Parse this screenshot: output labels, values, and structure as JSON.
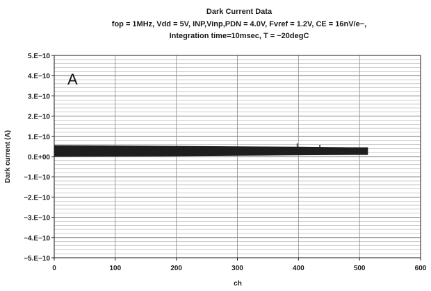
{
  "panel_label": "A",
  "chart_data": {
    "type": "line",
    "title": "Dark Current Data",
    "subtitle_lines": [
      "fop = 1MHz, Vdd = 5V, INP,Vinp,PDN = 4.0V, Fvref = 1.2V, CE = 16nV/e−,",
      "Integration time=10msec, T = −20degC"
    ],
    "xlabel": "ch",
    "ylabel": "Dark current (A)",
    "xlim": [
      0,
      600
    ],
    "ylim": [
      -5e-10,
      5e-10
    ],
    "x_ticks": [
      0,
      100,
      200,
      300,
      400,
      500,
      600
    ],
    "x_tick_labels": [
      "0",
      "100",
      "200",
      "300",
      "400",
      "500",
      "600"
    ],
    "y_ticks": [
      5e-10,
      4e-10,
      3e-10,
      2e-10,
      1e-10,
      0,
      -1e-10,
      -2e-10,
      -3e-10,
      -4e-10,
      -5e-10
    ],
    "y_tick_labels": [
      "5.E−10",
      "4.E−10",
      "3.E−10",
      "2.E−10",
      "1.E−10",
      "0.E+00",
      "−1.E−10",
      "−2.E−10",
      "−3.E−10",
      "−4.E−10",
      "−5.E−10"
    ],
    "grid": true,
    "series": [
      {
        "color": "#1e1e1e",
        "band": {
          "x": [
            0,
            100,
            200,
            300,
            400,
            500,
            513
          ],
          "upper": [
            5.5e-11,
            5.3e-11,
            5.1e-11,
            4.9e-11,
            4.7e-11,
            4.4e-11,
            4.4e-11
          ],
          "lower": [
            0,
            2e-12,
            4e-12,
            6e-12,
            8e-12,
            1e-11,
            1e-11
          ]
        },
        "spikes": [
          {
            "x": 398,
            "y": 6.5e-11
          },
          {
            "x": 435,
            "y": 5.8e-11
          }
        ]
      }
    ]
  }
}
